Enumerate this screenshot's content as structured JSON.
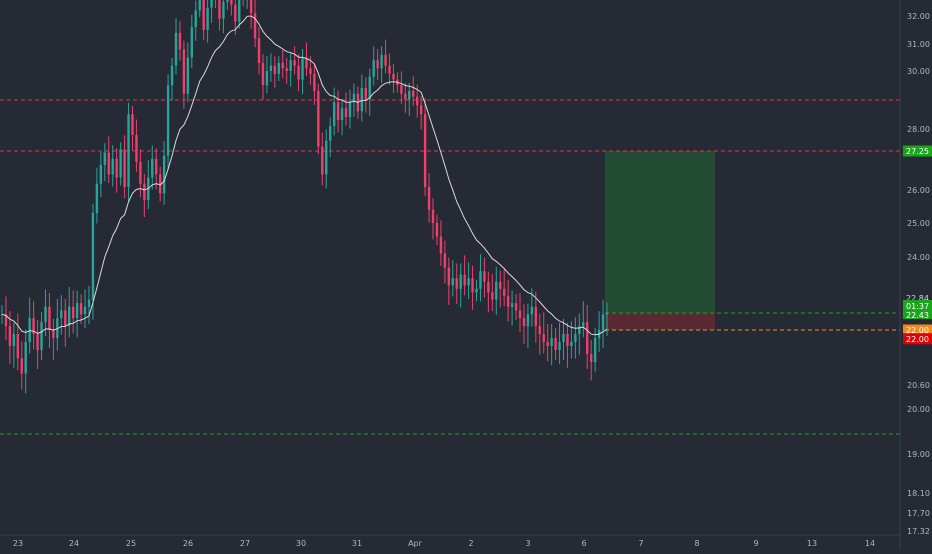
{
  "chart_data": {
    "type": "candlestick",
    "symbol": "",
    "title": "",
    "y_axis": {
      "position": "right",
      "ticks": [
        32.0,
        31.0,
        30.0,
        28.0,
        26.0,
        25.0,
        24.0,
        20.6,
        20.0,
        19.0,
        18.1,
        17.7,
        17.32
      ],
      "scale": "log"
    },
    "x_axis": {
      "tick_labels": [
        "23",
        "24",
        "25",
        "26",
        "27",
        "30",
        "31",
        "Apr",
        "2",
        "3",
        "6",
        "7",
        "8",
        "9",
        "13",
        "14"
      ]
    },
    "horizontal_levels": [
      {
        "price": 28.98,
        "label": "28.98",
        "color": "#e53935",
        "style": "dashed"
      },
      {
        "price": 27.25,
        "label": "27.25",
        "color": "#e53935",
        "style": "dashed"
      },
      {
        "price": 22.43,
        "label": "22.43",
        "color": "#1aa51a",
        "style": "dashed"
      },
      {
        "price": 22.0,
        "label": "22.00",
        "color": "#f08a1c",
        "style": "dashed"
      },
      {
        "price": 19.43,
        "label": "19.43",
        "color": "#1aa51a",
        "style": "dashed"
      }
    ],
    "price_labels": [
      {
        "price": 27.25,
        "text": "27.25",
        "bg": "#1aa51a"
      },
      {
        "price": 22.84,
        "text": "22.84",
        "bg": "none"
      },
      {
        "price": 22.43,
        "text": "22.43",
        "sub": "01:37",
        "bg": "#1aa51a"
      },
      {
        "price": 22.0,
        "text": "22.00",
        "bg": "#f08a1c"
      },
      {
        "price": 21.78,
        "text": "22.00",
        "bg": "#e00000"
      }
    ],
    "position_tool": {
      "entry": 22.43,
      "target": 27.25,
      "stop": 22.0,
      "profit_color": "#234a33",
      "loss_color": "#5a2a33"
    },
    "candles_close": [
      22.4,
      22.1,
      21.6,
      21.9,
      21.3,
      20.9,
      21.7,
      22.3,
      21.9,
      21.5,
      22.2,
      22.6,
      22.0,
      21.8,
      22.3,
      22.5,
      22.1,
      22.6,
      22.3,
      22.7,
      22.4,
      22.6,
      22.8,
      25.3,
      26.2,
      26.8,
      27.2,
      26.5,
      27.0,
      26.4,
      27.3,
      26.1,
      28.5,
      27.8,
      26.9,
      26.2,
      25.7,
      26.4,
      27.0,
      26.5,
      25.9,
      27.1,
      29.5,
      30.2,
      31.4,
      30.8,
      29.2,
      30.5,
      31.6,
      32.2,
      32.8,
      31.5,
      32.3,
      33.1,
      32.6,
      31.9,
      32.5,
      33.2,
      32.4,
      31.8,
      33.0,
      32.7,
      33.3,
      32.1,
      31.2,
      30.3,
      29.5,
      30.0,
      30.2,
      29.9,
      30.3,
      30.1,
      30.0,
      30.4,
      30.2,
      29.7,
      30.5,
      30.1,
      29.9,
      29.3,
      27.4,
      26.5,
      27.6,
      28.1,
      28.9,
      28.3,
      28.7,
      28.4,
      28.9,
      29.2,
      28.6,
      29.4,
      29.0,
      29.8,
      30.4,
      30.1,
      30.6,
      30.2,
      29.9,
      29.7,
      29.5,
      29.2,
      29.0,
      29.3,
      29.1,
      28.8,
      28.5,
      26.1,
      25.4,
      25.0,
      24.6,
      24.1,
      23.7,
      23.2,
      23.4,
      23.1,
      23.5,
      23.2,
      23.4,
      23.0,
      23.1,
      23.6,
      23.3,
      23.0,
      22.8,
      23.3,
      23.1,
      22.9,
      22.6,
      22.7,
      22.5,
      22.3,
      22.1,
      22.4,
      22.6,
      22.1,
      21.9,
      21.7,
      21.6,
      21.8,
      21.5,
      21.7,
      21.9,
      21.6,
      21.7,
      21.9,
      22.1,
      22.2,
      21.4,
      21.2,
      21.8,
      22.0,
      22.4,
      22.43
    ]
  }
}
